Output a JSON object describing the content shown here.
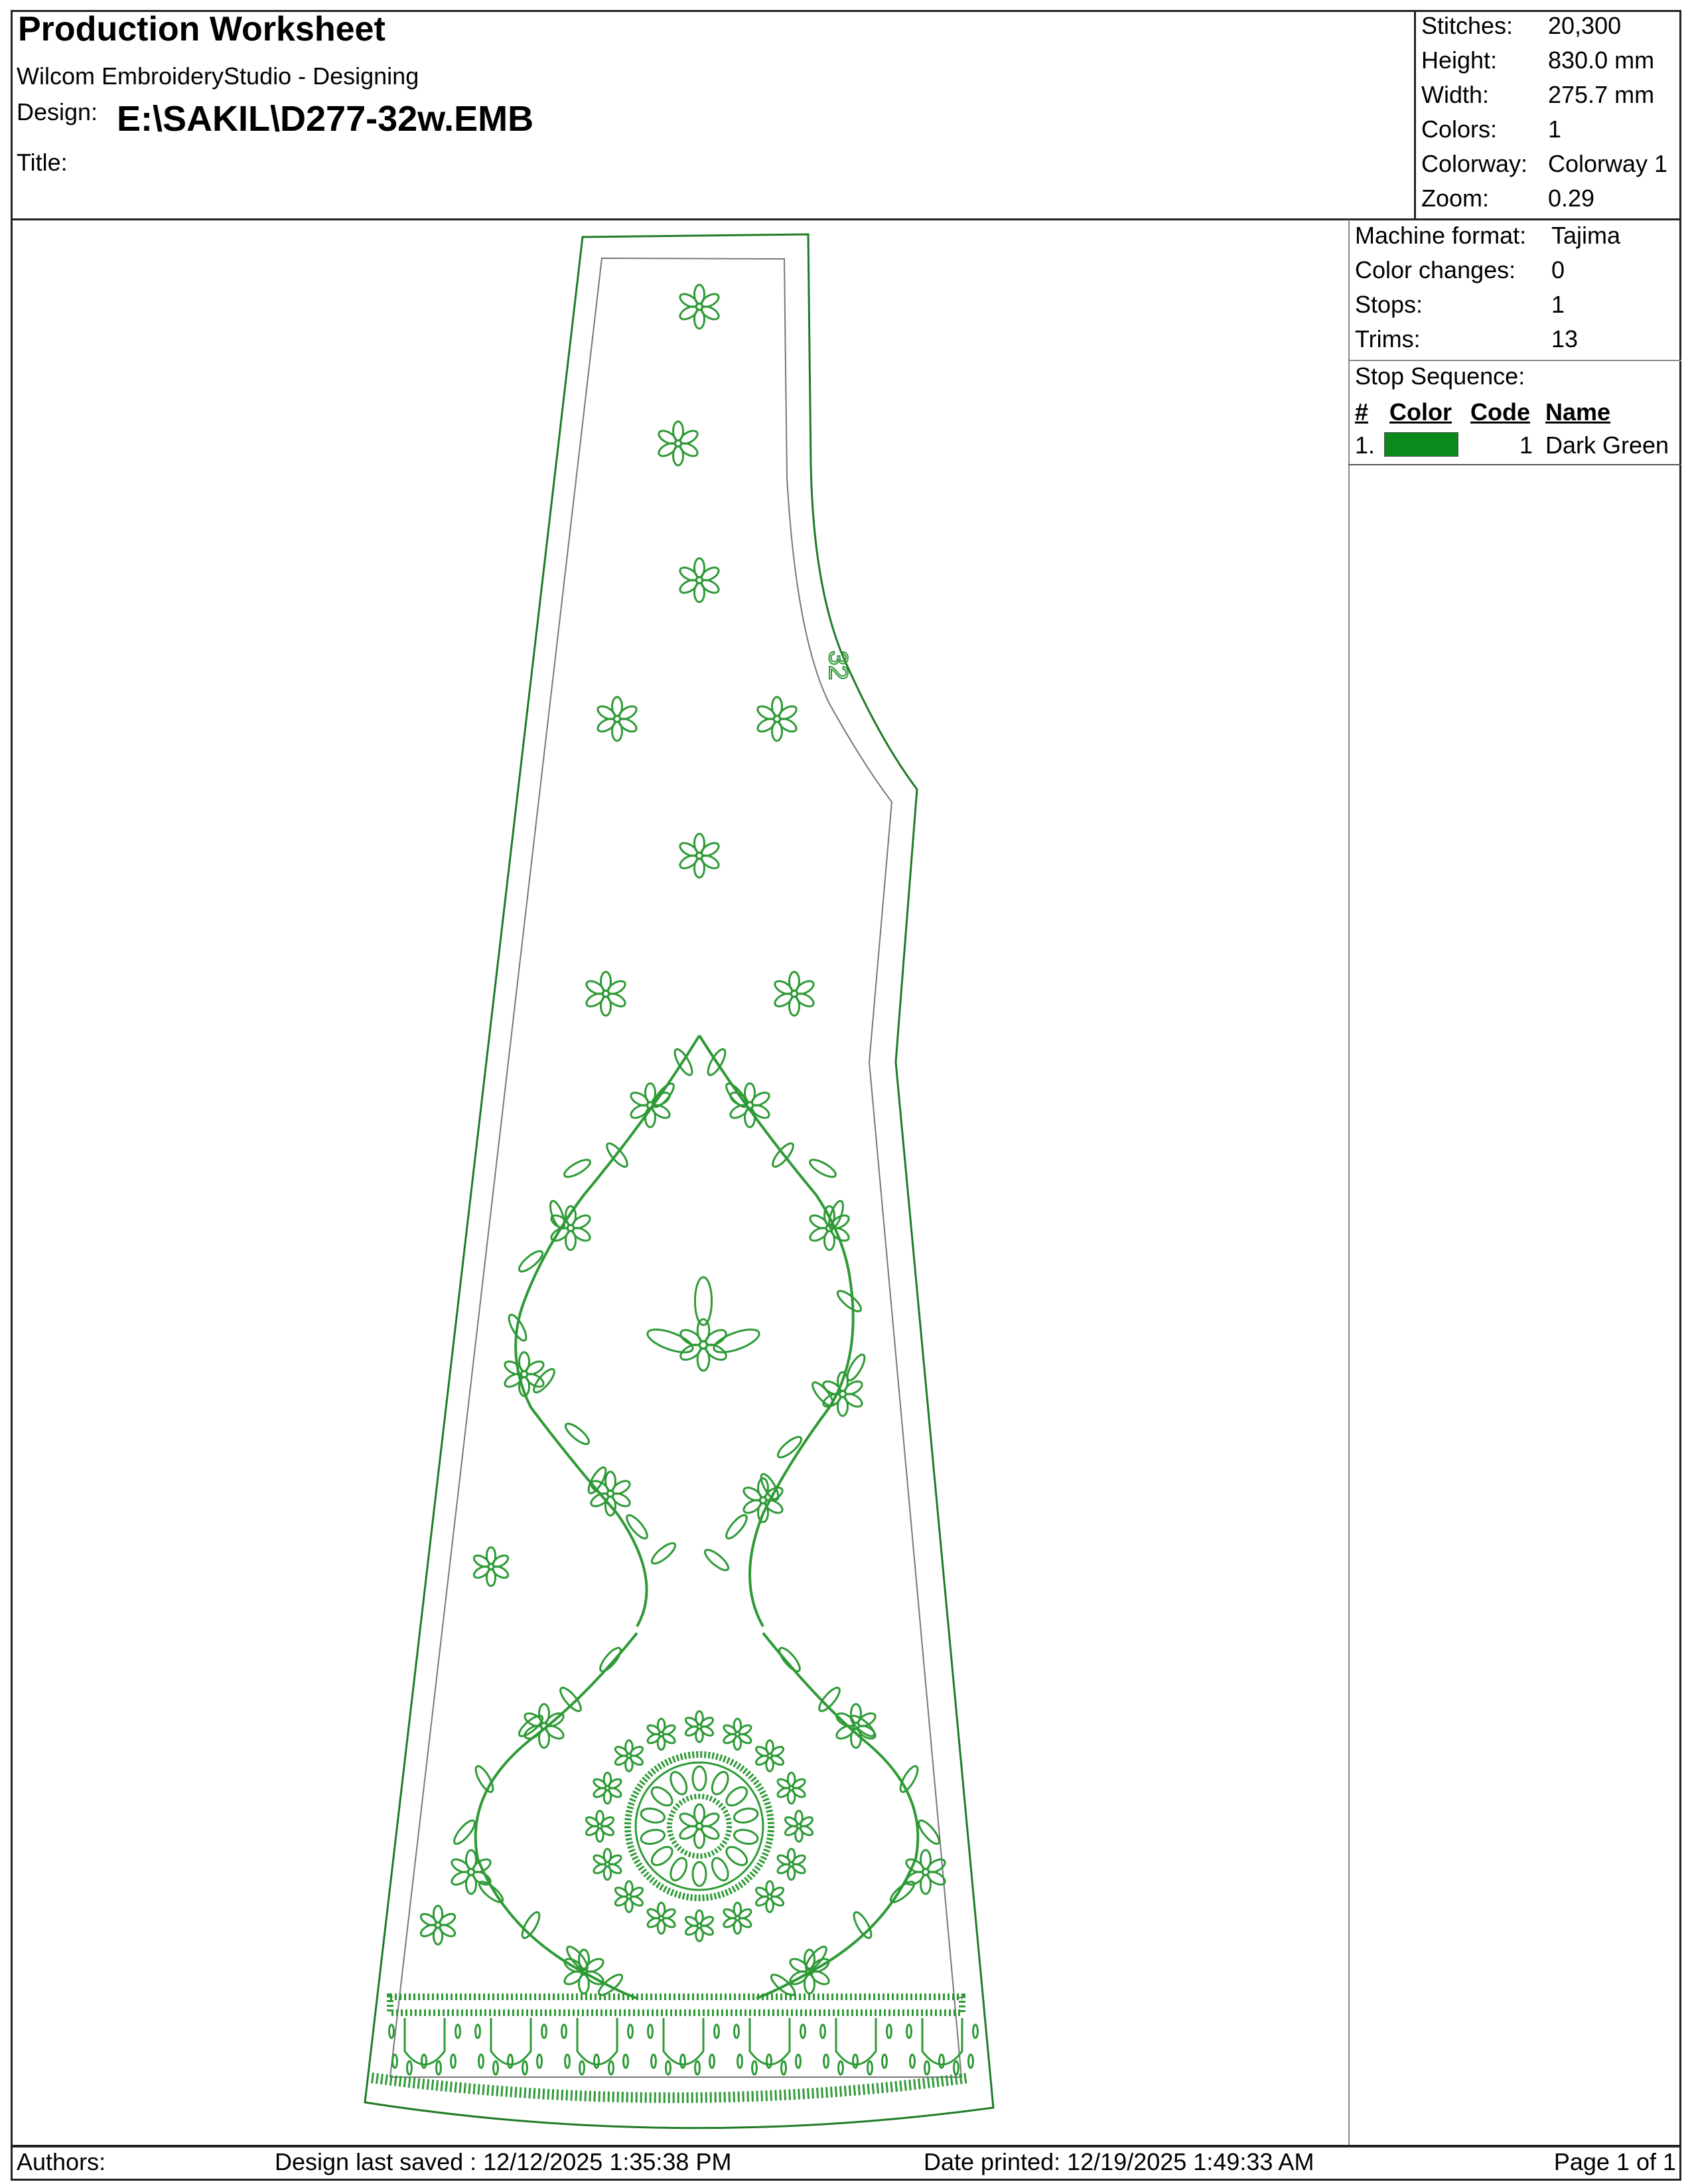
{
  "header": {
    "title": "Production Worksheet",
    "software": "Wilcom EmbroideryStudio - Designing",
    "design_label": "Design:",
    "design_value": "E:\\SAKIL\\D277-32w.EMB",
    "title_label": "Title:",
    "title_value": ""
  },
  "stats": [
    {
      "label": "Stitches:",
      "value": "20,300"
    },
    {
      "label": "Height:",
      "value": "830.0 mm"
    },
    {
      "label": "Width:",
      "value": "275.7 mm"
    },
    {
      "label": "Colors:",
      "value": "1"
    },
    {
      "label": "Colorway:",
      "value": "Colorway 1"
    },
    {
      "label": "Zoom:",
      "value": "0.29"
    }
  ],
  "machine": [
    {
      "label": "Machine format:",
      "value": "Tajima"
    },
    {
      "label": "Color changes:",
      "value": "0"
    },
    {
      "label": "Stops:",
      "value": "1"
    },
    {
      "label": "Trims:",
      "value": "13"
    }
  ],
  "stop_sequence": {
    "title": "Stop Sequence:",
    "columns": [
      "#",
      "Color",
      "Code",
      "Name"
    ],
    "rows": [
      {
        "num": "1.",
        "color": "#0a8a1a",
        "code": "1",
        "name": "Dark Green"
      }
    ]
  },
  "design": {
    "thread_color": "#2e9a36",
    "outline_color": "#1f7a26",
    "stitched_text": "32"
  },
  "footer": {
    "authors": "Authors:",
    "last_saved": "Design last saved : 12/12/2025 1:35:38 PM",
    "date_printed": "Date printed: 12/19/2025 1:49:33 AM",
    "page": "Page 1 of 1"
  }
}
